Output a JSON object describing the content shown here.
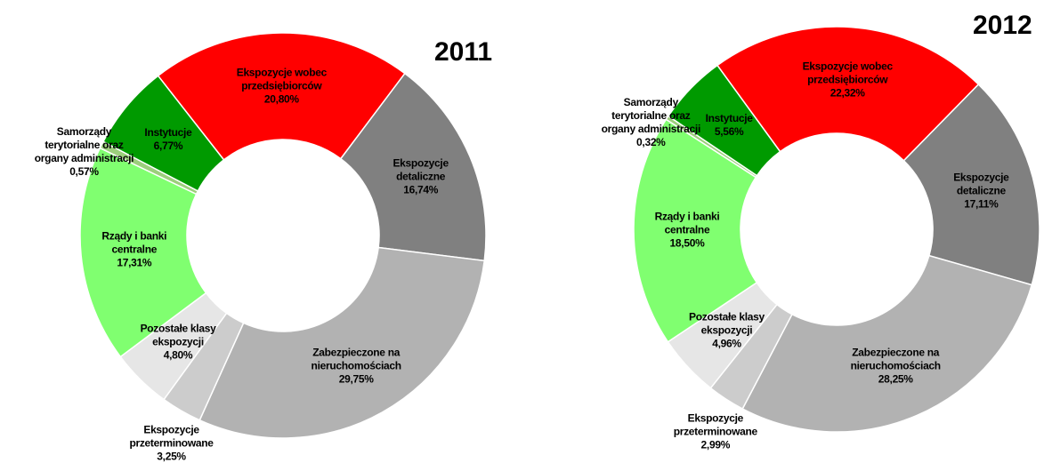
{
  "chart_data": [
    {
      "type": "donut",
      "title": "2011",
      "categories": [
        "Ekspozycje wobec przedsiębiorców",
        "Ekspozycje detaliczne",
        "Zabezpieczone na nieruchomościach",
        "Ekspozycje przeterminowane",
        "Pozostałe klasy ekspozycji",
        "Rządy i banki centralne",
        "Samorządy terytorialne oraz organy administracji",
        "Instytucje"
      ],
      "values": [
        20.8,
        16.74,
        29.75,
        3.25,
        4.8,
        17.31,
        0.57,
        6.77
      ],
      "value_labels": [
        "20,80%",
        "16,74%",
        "29,75%",
        "3,25%",
        "4,80%",
        "17,31%",
        "0,57%",
        "6,77%"
      ],
      "colors": [
        "#ff0000",
        "#808080",
        "#b2b2b2",
        "#cccccc",
        "#e6e6e6",
        "#80ff70",
        "#9ccf7c",
        "#009a00"
      ]
    },
    {
      "type": "donut",
      "title": "2012",
      "categories": [
        "Ekspozycje wobec przedsiębiorców",
        "Ekspozycje detaliczne",
        "Zabezpieczone na nieruchomościach",
        "Ekspozycje przeterminowane",
        "Pozostałe klasy ekspozycji",
        "Rządy i banki centralne",
        "Samorządy terytorialne oraz organy administracji",
        "Instytucje"
      ],
      "values": [
        22.32,
        17.11,
        28.25,
        2.99,
        4.96,
        18.5,
        0.32,
        5.56
      ],
      "value_labels": [
        "22,32%",
        "17,11%",
        "28,25%",
        "2,99%",
        "4,96%",
        "18,50%",
        "0,32%",
        "5,56%"
      ],
      "colors": [
        "#ff0000",
        "#808080",
        "#b2b2b2",
        "#cccccc",
        "#e6e6e6",
        "#80ff70",
        "#9ccf7c",
        "#009a00"
      ]
    }
  ]
}
